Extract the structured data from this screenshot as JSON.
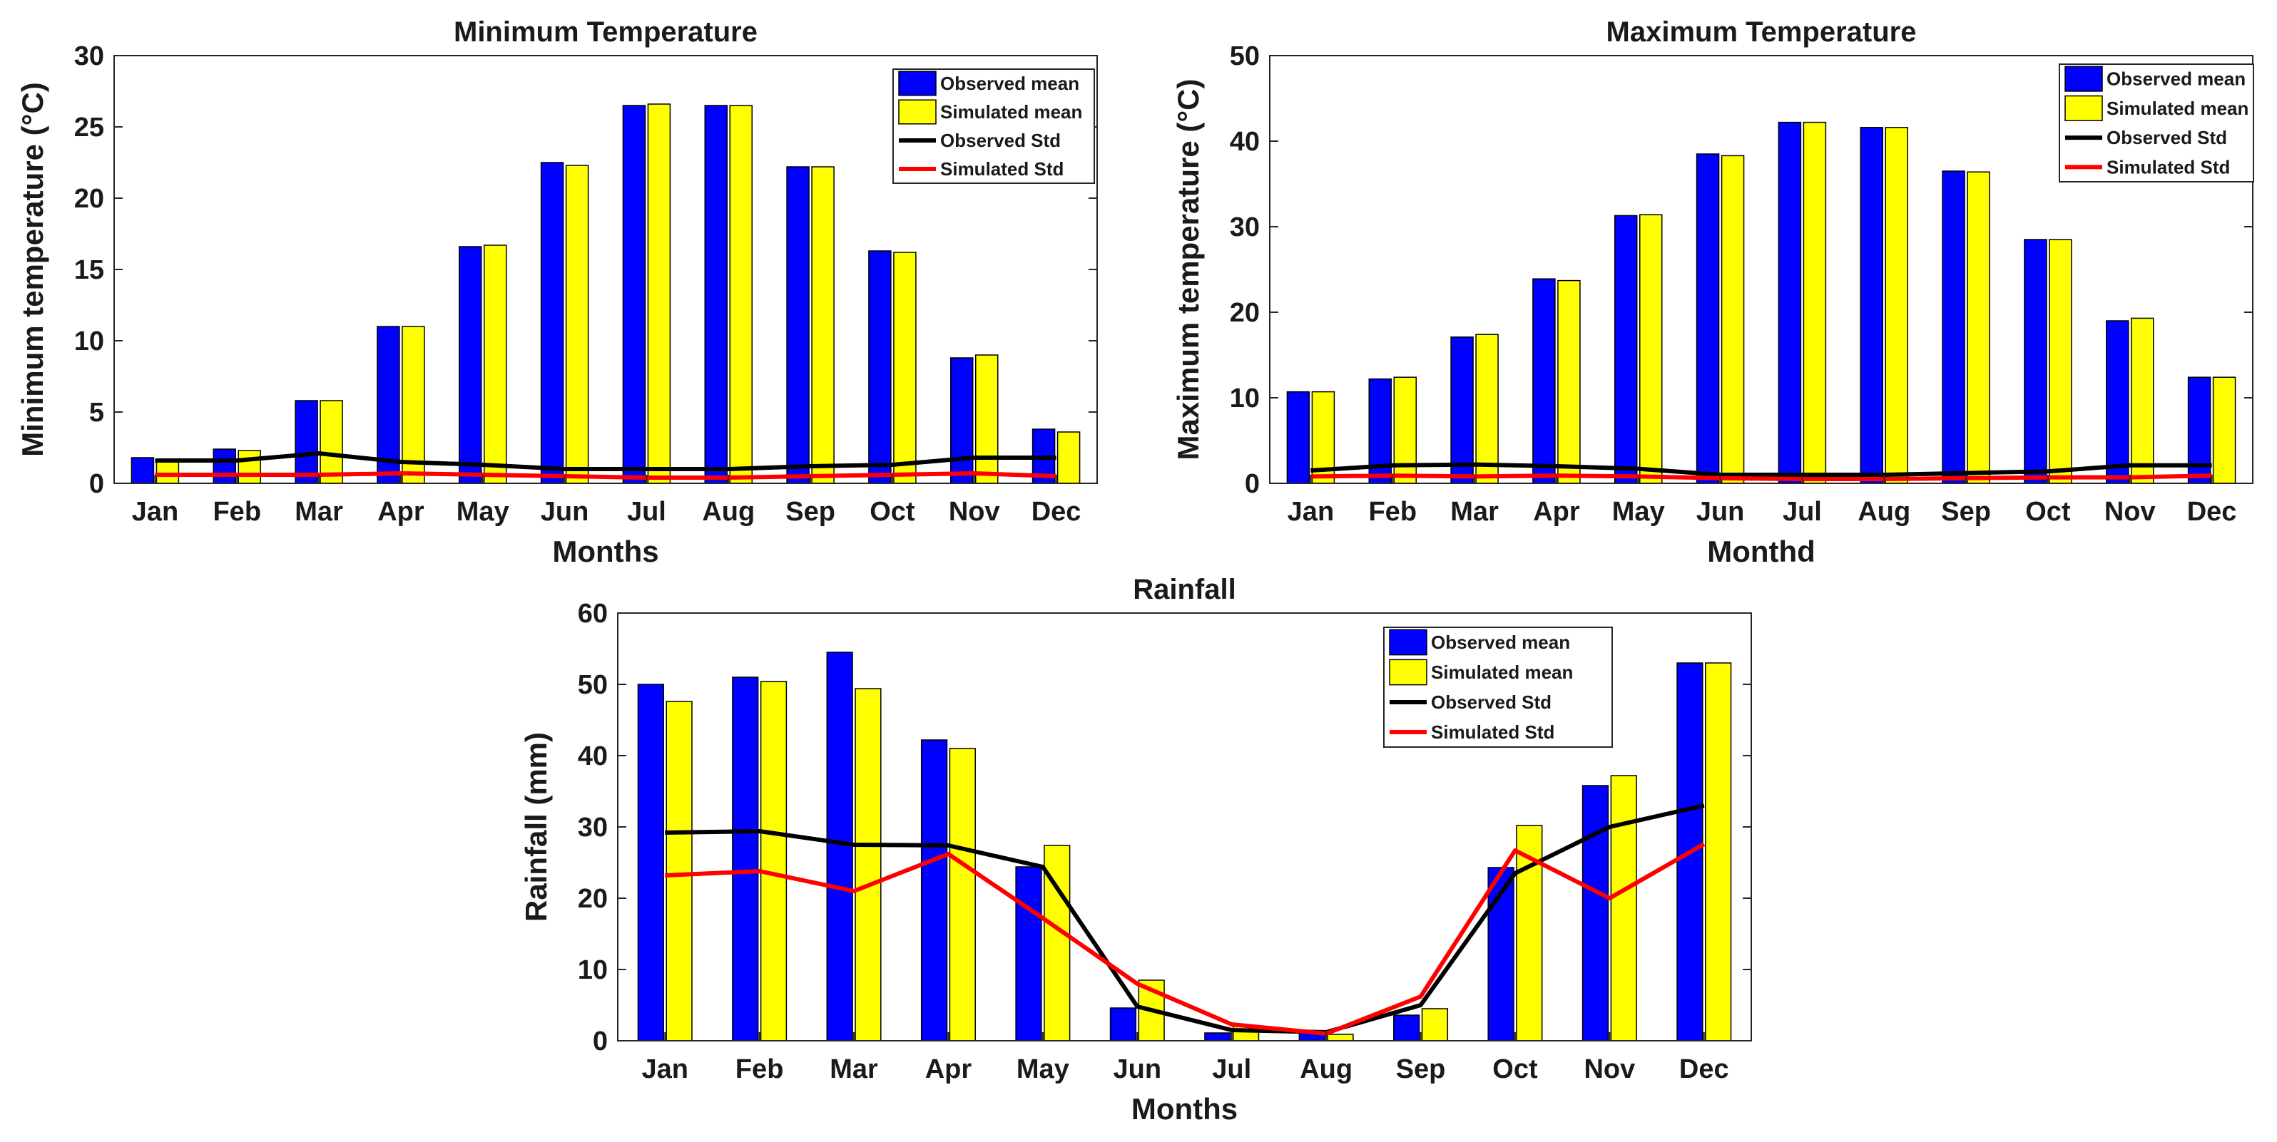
{
  "colors": {
    "observed_bar": "#0000ff",
    "simulated_bar": "#ffff00",
    "observed_line": "#000000",
    "simulated_line": "#ff0000"
  },
  "chart_data": [
    {
      "id": "min-temp",
      "type": "bar",
      "title": "Minimum Temperature",
      "xlabel": "Months",
      "ylabel": "Minimum temperature (°C)",
      "ylim": [
        0,
        30
      ],
      "yticks": [
        0,
        5,
        10,
        15,
        20,
        25,
        30
      ],
      "categories": [
        "Jan",
        "Feb",
        "Mar",
        "Apr",
        "May",
        "Jun",
        "Jul",
        "Aug",
        "Sep",
        "Oct",
        "Nov",
        "Dec"
      ],
      "legend_position": "top-right",
      "legend": [
        "Observed mean",
        "Simulated mean",
        "Observed Std",
        "Simulated Std"
      ],
      "bar_series": [
        {
          "name": "Observed mean",
          "values": [
            1.8,
            2.4,
            5.8,
            11.0,
            16.6,
            22.5,
            26.5,
            26.5,
            22.2,
            16.3,
            8.8,
            3.8
          ]
        },
        {
          "name": "Simulated mean",
          "values": [
            1.5,
            2.3,
            5.8,
            11.0,
            16.7,
            22.3,
            26.6,
            26.5,
            22.2,
            16.2,
            9.0,
            3.6
          ]
        }
      ],
      "line_series": [
        {
          "name": "Observed Std",
          "values": [
            1.6,
            1.6,
            2.1,
            1.5,
            1.3,
            1.0,
            1.0,
            1.0,
            1.2,
            1.3,
            1.8,
            1.8
          ]
        },
        {
          "name": "Simulated Std",
          "values": [
            0.6,
            0.6,
            0.6,
            0.7,
            0.6,
            0.5,
            0.4,
            0.4,
            0.5,
            0.6,
            0.7,
            0.5
          ]
        }
      ]
    },
    {
      "id": "max-temp",
      "type": "bar",
      "title": "Maximum Temperature",
      "xlabel": "Monthd",
      "ylabel": "Maximum temperature (°C)",
      "ylim": [
        0,
        50
      ],
      "yticks": [
        0,
        10,
        20,
        30,
        40,
        50
      ],
      "categories": [
        "Jan",
        "Feb",
        "Mar",
        "Apr",
        "May",
        "Jun",
        "Jul",
        "Aug",
        "Sep",
        "Oct",
        "Nov",
        "Dec"
      ],
      "legend_position": "top-right",
      "legend": [
        "Observed mean",
        "Simulated mean",
        "Observed Std",
        "Simulated Std"
      ],
      "bar_series": [
        {
          "name": "Observed mean",
          "values": [
            10.7,
            12.2,
            17.1,
            23.9,
            31.3,
            38.5,
            42.2,
            41.6,
            36.5,
            28.5,
            19.0,
            12.4
          ]
        },
        {
          "name": "Simulated mean",
          "values": [
            10.7,
            12.4,
            17.4,
            23.7,
            31.4,
            38.3,
            42.2,
            41.6,
            36.4,
            28.5,
            19.3,
            12.4
          ]
        }
      ],
      "line_series": [
        {
          "name": "Observed Std",
          "values": [
            1.5,
            2.1,
            2.2,
            2.0,
            1.7,
            1.0,
            1.0,
            1.0,
            1.2,
            1.4,
            2.1,
            2.1
          ]
        },
        {
          "name": "Simulated Std",
          "values": [
            0.8,
            0.9,
            0.8,
            0.9,
            0.8,
            0.6,
            0.5,
            0.5,
            0.6,
            0.7,
            0.7,
            0.9
          ]
        }
      ]
    },
    {
      "id": "rainfall",
      "type": "bar",
      "title": "Rainfall",
      "xlabel": "Months",
      "ylabel": "Rainfall (mm)",
      "ylim": [
        0,
        60
      ],
      "yticks": [
        0,
        10,
        20,
        30,
        40,
        50,
        60
      ],
      "categories": [
        "Jan",
        "Feb",
        "Mar",
        "Apr",
        "May",
        "Jun",
        "Jul",
        "Aug",
        "Sep",
        "Oct",
        "Nov",
        "Dec"
      ],
      "legend_position": "top-right",
      "legend": [
        "Observed mean",
        "Simulated mean",
        "Observed Std",
        "Simulated Std"
      ],
      "bar_series": [
        {
          "name": "Observed mean",
          "values": [
            50.0,
            51.0,
            54.5,
            42.2,
            24.4,
            4.6,
            1.1,
            1.2,
            3.6,
            24.3,
            35.8,
            53.0
          ]
        },
        {
          "name": "Simulated mean",
          "values": [
            47.6,
            50.4,
            49.4,
            41.0,
            27.4,
            8.5,
            2.0,
            0.9,
            4.5,
            30.2,
            37.2,
            53.0
          ]
        }
      ],
      "line_series": [
        {
          "name": "Observed Std",
          "values": [
            29.2,
            29.4,
            27.5,
            27.4,
            24.4,
            4.8,
            1.5,
            1.2,
            5.0,
            23.5,
            30.0,
            33.0
          ]
        },
        {
          "name": "Simulated Std",
          "values": [
            23.2,
            23.8,
            21.0,
            26.2,
            17.2,
            8.0,
            2.3,
            1.0,
            6.2,
            26.7,
            20.0,
            27.6
          ]
        }
      ]
    }
  ]
}
